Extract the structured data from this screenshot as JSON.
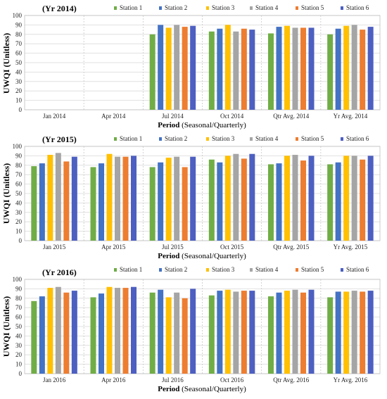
{
  "colors": {
    "Station 1": "#70ad47",
    "Station 2": "#4472c4",
    "Station 3": "#ffc000",
    "Station 4": "#a5a5a5",
    "Station 5": "#ed7d31",
    "Station 6": "#4d5fc0"
  },
  "chart_data": [
    {
      "type": "bar",
      "title": "(Yr 2014)",
      "xlabel": "Period",
      "xlabel_note": "(Seasonal/Quarterly)",
      "ylabel": "UWQI (Unitless)",
      "ylim": [
        0,
        100
      ],
      "yticks": [
        0,
        10,
        20,
        30,
        40,
        50,
        60,
        70,
        80,
        90,
        100
      ],
      "grid": true,
      "legend": "top",
      "categories": [
        "Jan 2014",
        "Apr 2014",
        "Jul 2014",
        "Oct 2014",
        "Qtr Avg. 2014",
        "Yr Avg. 2014"
      ],
      "series": [
        {
          "name": "Station 1",
          "values": [
            null,
            null,
            80,
            83,
            81,
            80
          ]
        },
        {
          "name": "Station 2",
          "values": [
            null,
            null,
            90,
            86,
            88,
            86
          ]
        },
        {
          "name": "Station 3",
          "values": [
            null,
            null,
            87,
            90,
            89,
            89
          ]
        },
        {
          "name": "Station 4",
          "values": [
            null,
            null,
            90,
            83,
            87,
            90
          ]
        },
        {
          "name": "Station 5",
          "values": [
            null,
            null,
            88,
            86,
            87,
            85
          ]
        },
        {
          "name": "Station 6",
          "values": [
            null,
            null,
            89,
            85,
            87,
            88
          ]
        }
      ]
    },
    {
      "type": "bar",
      "title": "(Yr 2015)",
      "xlabel": "Period",
      "xlabel_note": "(Seasonal/Quarterly)",
      "ylabel": "UWQI (Unitless)",
      "ylim": [
        0,
        100
      ],
      "yticks": [
        0,
        10,
        20,
        30,
        40,
        50,
        60,
        70,
        80,
        90,
        100
      ],
      "grid": true,
      "legend": "top",
      "categories": [
        "Jan 2015",
        "Apr 2015",
        "Jul 2015",
        "Oct 2015",
        "Qtr Avg. 2015",
        "Yr Avg. 2015"
      ],
      "series": [
        {
          "name": "Station 1",
          "values": [
            79,
            78,
            78,
            86,
            81,
            81
          ]
        },
        {
          "name": "Station 2",
          "values": [
            82,
            82,
            83,
            83,
            82,
            83
          ]
        },
        {
          "name": "Station 3",
          "values": [
            91,
            92,
            88,
            90,
            90,
            90
          ]
        },
        {
          "name": "Station 4",
          "values": [
            93,
            89,
            89,
            92,
            91,
            90
          ]
        },
        {
          "name": "Station 5",
          "values": [
            84,
            89,
            78,
            87,
            85,
            86
          ]
        },
        {
          "name": "Station 6",
          "values": [
            89,
            90,
            89,
            92,
            90,
            90
          ]
        }
      ]
    },
    {
      "type": "bar",
      "title": "(Yr 2016)",
      "xlabel": "Period",
      "xlabel_note": "(Seasonal/Quarterly)",
      "ylabel": "UWQI (Unitless)",
      "ylim": [
        0,
        100
      ],
      "yticks": [
        0,
        10,
        20,
        30,
        40,
        50,
        60,
        70,
        80,
        90,
        100
      ],
      "grid": true,
      "legend": "top",
      "categories": [
        "Jan 2016",
        "Apr 2016",
        "Jul 2016",
        "Oct 2016",
        "Qtr Avg. 2016",
        "Yr Avg. 2016"
      ],
      "series": [
        {
          "name": "Station 1",
          "values": [
            77,
            81,
            86,
            83,
            82,
            81
          ]
        },
        {
          "name": "Station 2",
          "values": [
            82,
            85,
            89,
            88,
            86,
            87
          ]
        },
        {
          "name": "Station 3",
          "values": [
            91,
            92,
            81,
            89,
            88,
            87
          ]
        },
        {
          "name": "Station 4",
          "values": [
            92,
            91,
            86,
            87,
            89,
            88
          ]
        },
        {
          "name": "Station 5",
          "values": [
            86,
            91,
            80,
            88,
            86,
            87
          ]
        },
        {
          "name": "Station 6",
          "values": [
            88,
            92,
            90,
            88,
            89,
            88
          ]
        }
      ]
    }
  ]
}
